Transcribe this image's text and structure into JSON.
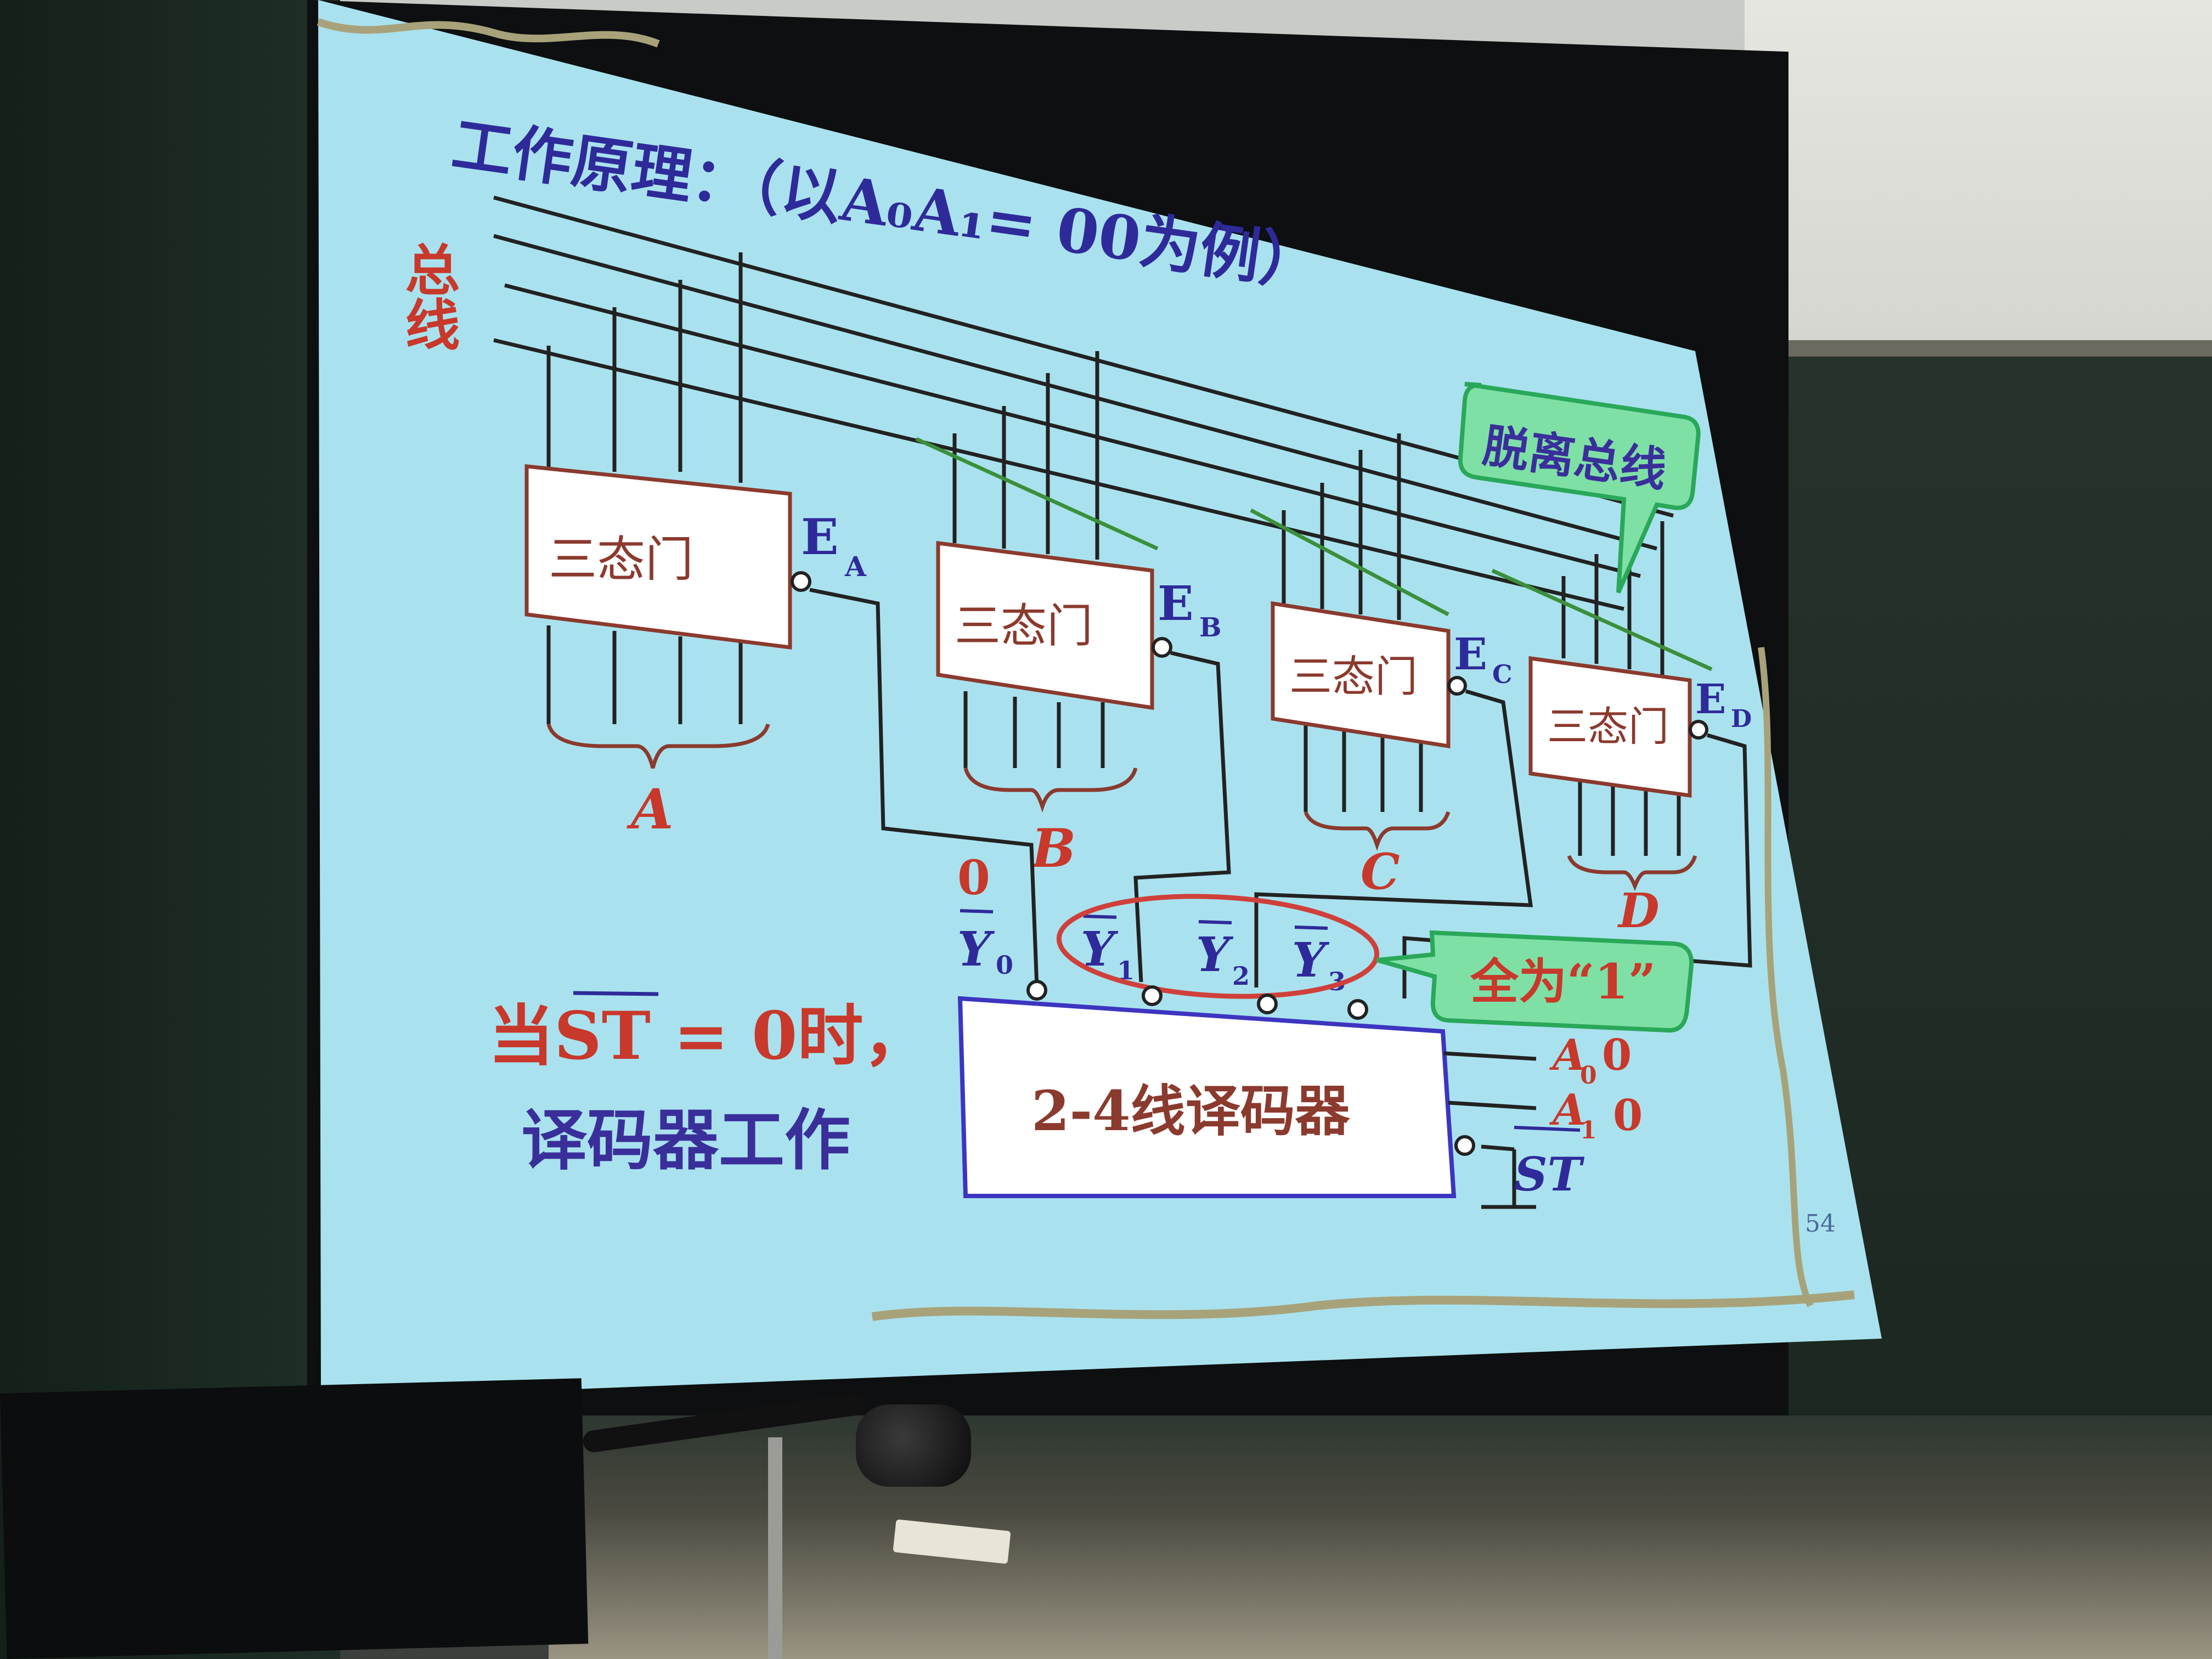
{
  "slide": {
    "title": "工作原理：（以A₀A₁= 00为例）",
    "bus_label": "总线",
    "callout_bus": "脱离总线",
    "callout_ones": "全为“1”",
    "gate_label": "三态门",
    "enable_labels": [
      "E",
      "E",
      "E",
      "E"
    ],
    "enable_subs": [
      "A",
      "B",
      "C",
      "D"
    ],
    "group_labels": [
      "A",
      "B",
      "C",
      "D"
    ],
    "y0_value": "0",
    "outputs": [
      "Y",
      "Y",
      "Y",
      "Y"
    ],
    "output_subs": [
      "0",
      "1",
      "2",
      "3"
    ],
    "condition_line1": "当ST = 0时，",
    "condition_line2": "译码器工作",
    "decoder_label": "2-4线译码器",
    "input_a0": "A",
    "input_a0_sub": "0",
    "input_a0_value": "0",
    "input_a1": "A",
    "input_a1_sub": "1",
    "input_a1_value": "0",
    "input_st": "ST",
    "page_number": "54"
  },
  "colors": {
    "slide_bg": "#a9e2ee",
    "gate_border": "#8b3a2e",
    "gate_text": "#8b3a2e",
    "label_blue": "#2f2a9a",
    "label_red": "#c8382b",
    "decoder_border": "#3d35c0",
    "ellipse": "#d0403a",
    "callout_fill": "#7fe0a6",
    "callout_border": "#2aa85a",
    "green_line": "#3b8f3b"
  }
}
